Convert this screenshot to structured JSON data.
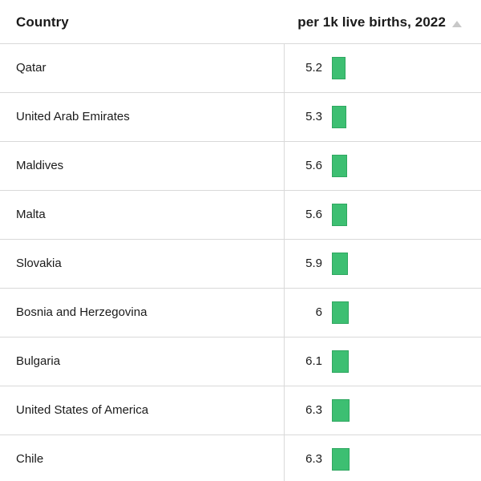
{
  "header": {
    "country_label": "Country",
    "value_label": "per 1k live births, 2022",
    "sort_icon": "sort-ascending-icon"
  },
  "colors": {
    "bar": "#3dbf72",
    "bar_border": "#2fa760",
    "rule": "#d9d9d9",
    "sort_icon": "#c8c8c8"
  },
  "chart_data": {
    "type": "table",
    "columns": [
      "Country",
      "per 1k live births, 2022"
    ],
    "rows": [
      {
        "country": "Qatar",
        "value": "5.2",
        "v": 5.2
      },
      {
        "country": "United Arab Emirates",
        "value": "5.3",
        "v": 5.3
      },
      {
        "country": "Maldives",
        "value": "5.6",
        "v": 5.6
      },
      {
        "country": "Malta",
        "value": "5.6",
        "v": 5.6
      },
      {
        "country": "Slovakia",
        "value": "5.9",
        "v": 5.9
      },
      {
        "country": "Bosnia and Herzegovina",
        "value": "6",
        "v": 6
      },
      {
        "country": "Bulgaria",
        "value": "6.1",
        "v": 6.1
      },
      {
        "country": "United States of America",
        "value": "6.3",
        "v": 6.3
      },
      {
        "country": "Chile",
        "value": "6.3",
        "v": 6.3
      }
    ]
  }
}
